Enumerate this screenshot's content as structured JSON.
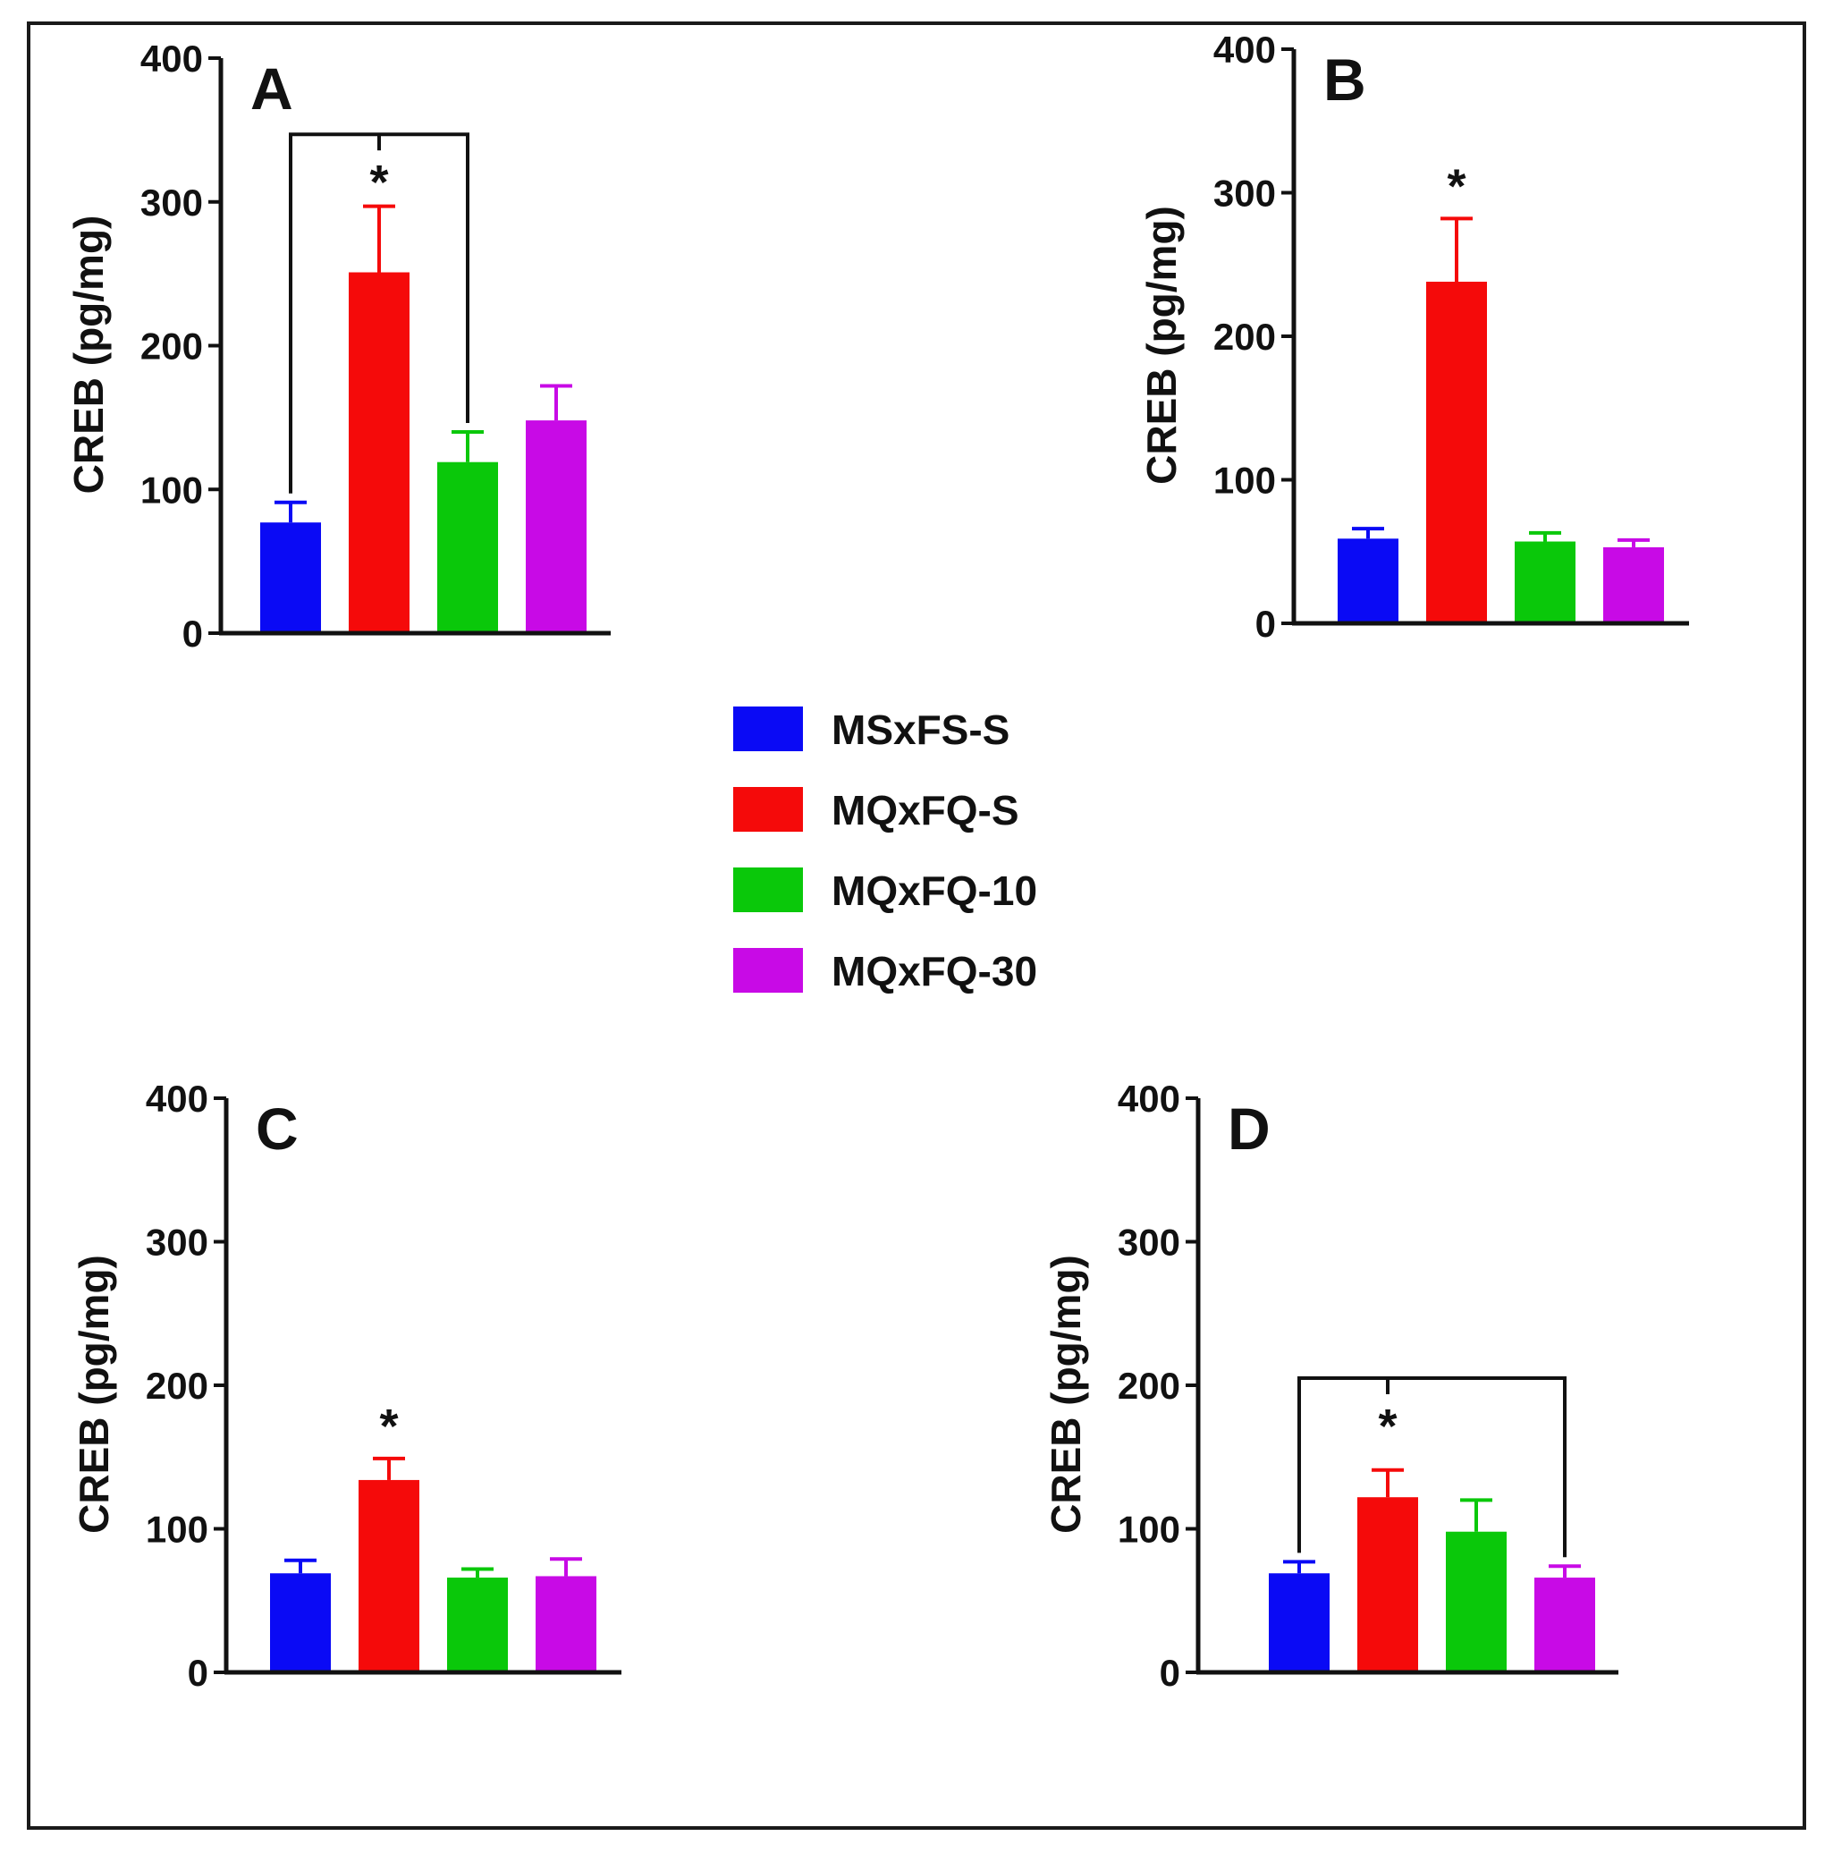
{
  "figure": {
    "legend": [
      {
        "label": "MSxFS-S",
        "color": "#0a0af5"
      },
      {
        "label": "MQxFQ-S",
        "color": "#f50a0a"
      },
      {
        "label": "MQxFQ-10",
        "color": "#0ac80a"
      },
      {
        "label": "MQxFQ-30",
        "color": "#c80ae6"
      }
    ]
  },
  "chart_data": [
    {
      "type": "bar",
      "panel": "A",
      "categories": [
        "MSxFS-S",
        "MQxFQ-S",
        "MQxFQ-10",
        "MQxFQ-30"
      ],
      "values": [
        77,
        251,
        119,
        148
      ],
      "errors": [
        14,
        46,
        21,
        24
      ],
      "ylabel": "CREB (pg/mg)",
      "ylim": [
        0,
        400
      ],
      "yticks": [
        0,
        100,
        200,
        300,
        400
      ],
      "significance": {
        "marker": "*",
        "over": "MQxFQ-S",
        "bracket": [
          "MSxFS-S",
          "MQxFQ-10"
        ],
        "bracket_level": 347
      }
    },
    {
      "type": "bar",
      "panel": "B",
      "categories": [
        "MSxFS-S",
        "MQxFQ-S",
        "MQxFQ-10",
        "MQxFQ-30"
      ],
      "values": [
        59,
        238,
        57,
        53
      ],
      "errors": [
        7,
        44,
        6,
        5
      ],
      "ylabel": "CREB (pg/mg)",
      "ylim": [
        0,
        400
      ],
      "yticks": [
        0,
        100,
        200,
        300,
        400
      ],
      "significance": {
        "marker": "*",
        "over": "MQxFQ-S",
        "bracket": null
      }
    },
    {
      "type": "bar",
      "panel": "C",
      "categories": [
        "MSxFS-S",
        "MQxFQ-S",
        "MQxFQ-10",
        "MQxFQ-30"
      ],
      "values": [
        69,
        134,
        66,
        67
      ],
      "errors": [
        9,
        15,
        6,
        12
      ],
      "ylabel": "CREB (pg/mg)",
      "ylim": [
        0,
        400
      ],
      "yticks": [
        0,
        100,
        200,
        300,
        400
      ],
      "significance": {
        "marker": "*",
        "over": "MQxFQ-S",
        "bracket": null
      }
    },
    {
      "type": "bar",
      "panel": "D",
      "categories": [
        "MSxFS-S",
        "MQxFQ-S",
        "MQxFQ-10",
        "MQxFQ-30"
      ],
      "values": [
        69,
        122,
        98,
        66
      ],
      "errors": [
        8,
        19,
        22,
        8
      ],
      "ylabel": "CREB (pg/mg)",
      "ylim": [
        0,
        400
      ],
      "yticks": [
        0,
        100,
        200,
        300,
        400
      ],
      "significance": {
        "marker": "*",
        "over": "MQxFQ-S",
        "bracket": [
          "MSxFS-S",
          "MQxFQ-30"
        ],
        "bracket_level": 205
      }
    }
  ]
}
